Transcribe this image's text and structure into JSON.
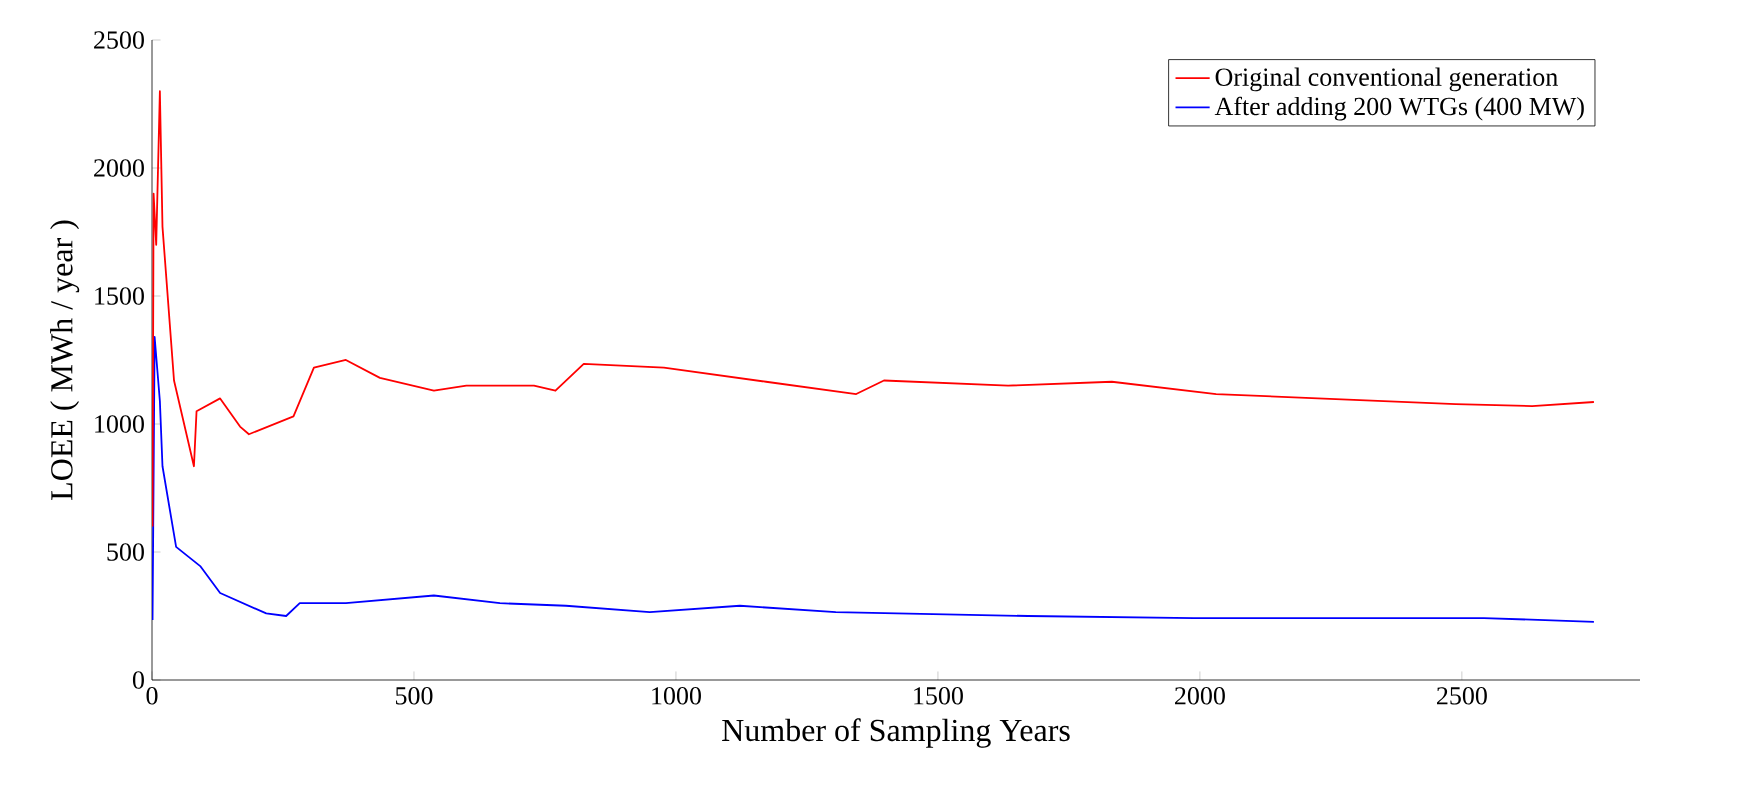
{
  "chart_data": {
    "type": "line",
    "xlabel": "Number of Sampling Years",
    "ylabel": "LOEE ( MWh / year )",
    "xlim": [
      0,
      2840
    ],
    "ylim": [
      0,
      2500
    ],
    "xticks": [
      0,
      500,
      1000,
      1500,
      2000,
      2500
    ],
    "yticks": [
      0,
      500,
      1000,
      1500,
      2000,
      2500
    ],
    "legend": "top right",
    "grid": false,
    "marker": "none",
    "line_style": "solid",
    "series": [
      {
        "name": "Original conventional generation",
        "color": "#ff0000",
        "x": [
          1,
          3,
          8,
          15,
          20,
          42,
          80,
          85,
          130,
          168,
          185,
          270,
          309,
          370,
          435,
          538,
          600,
          729,
          770,
          824,
          977,
          1172,
          1344,
          1397,
          1634,
          1832,
          2031,
          2225,
          2488,
          2634,
          2752
        ],
        "values": [
          600,
          1900,
          1700,
          2300,
          1770,
          1170,
          835,
          1050,
          1100,
          990,
          960,
          1030,
          1220,
          1250,
          1180,
          1130,
          1150,
          1150,
          1130,
          1235,
          1220,
          1165,
          1117,
          1170,
          1150,
          1165,
          1117,
          1100,
          1078,
          1070,
          1086
        ]
      },
      {
        "name": "After adding 200 WTGs (400 MW)",
        "color": "#0000ff",
        "x": [
          1,
          5,
          15,
          20,
          46,
          92,
          130,
          218,
          256,
          282,
          370,
          538,
          664,
          790,
          950,
          1122,
          1305,
          1672,
          1988,
          2542,
          2752
        ],
        "values": [
          234,
          1340,
          1090,
          835,
          520,
          445,
          340,
          260,
          250,
          300,
          300,
          330,
          300,
          290,
          265,
          290,
          265,
          250,
          242,
          242,
          227
        ]
      }
    ]
  }
}
